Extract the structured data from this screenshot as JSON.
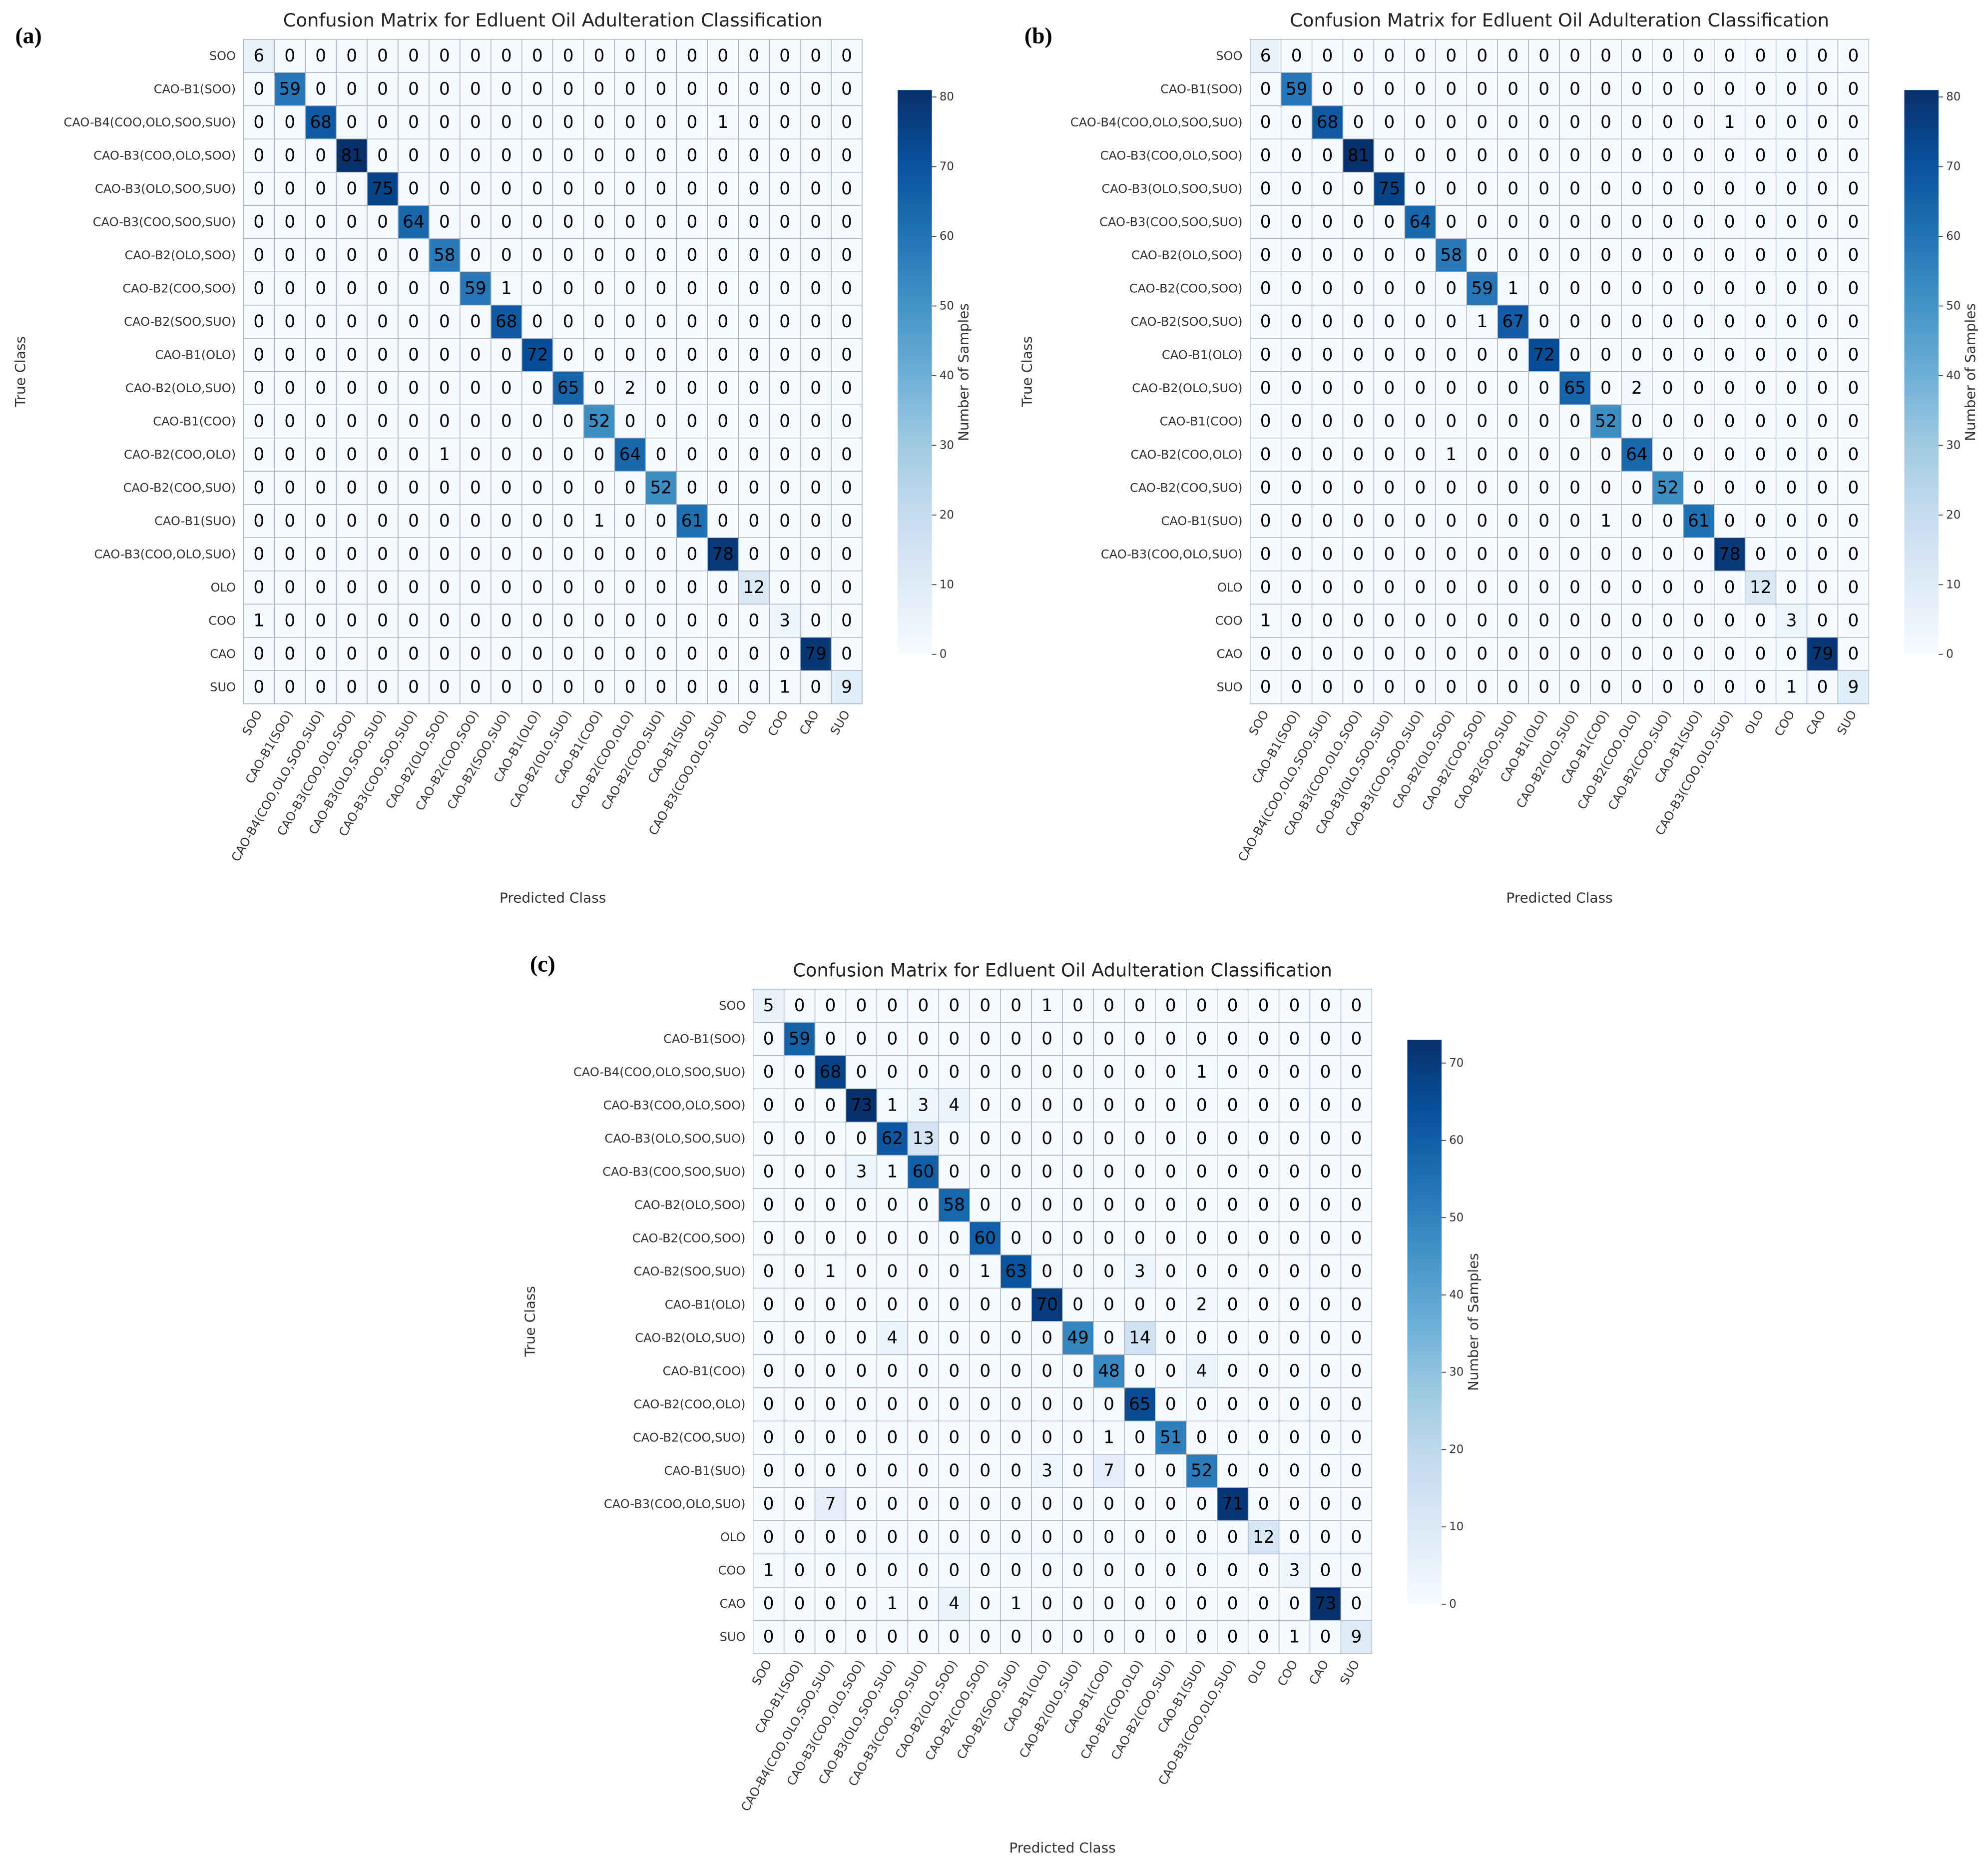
{
  "chart_data": [
    {
      "type": "heatmap",
      "panel_label": "(a)",
      "title": "Confusion Matrix for Edluent Oil Adulteration Classification",
      "x_label": "Predicted Class",
      "y_label": "True Class",
      "colorbar_label": "Number of Samples",
      "colormap": "Blues",
      "clim": [
        0,
        81
      ],
      "cticks": [
        0,
        10,
        20,
        30,
        40,
        50,
        60,
        70,
        80
      ],
      "categories": [
        "SOO",
        "CAO-B1(SOO)",
        "CAO-B4(COO,OLO,SOO,SUO)",
        "CAO-B3(COO,OLO,SOO)",
        "CAO-B3(OLO,SOO,SUO)",
        "CAO-B3(COO,SOO,SUO)",
        "CAO-B2(OLO,SOO)",
        "CAO-B2(COO,SOO)",
        "CAO-B2(SOO,SUO)",
        "CAO-B1(OLO)",
        "CAO-B2(OLO,SUO)",
        "CAO-B1(COO)",
        "CAO-B2(COO,OLO)",
        "CAO-B2(COO,SUO)",
        "CAO-B1(SUO)",
        "CAO-B3(COO,OLO,SUO)",
        "OLO",
        "COO",
        "CAO",
        "SUO"
      ],
      "values": [
        [
          6,
          0,
          0,
          0,
          0,
          0,
          0,
          0,
          0,
          0,
          0,
          0,
          0,
          0,
          0,
          0,
          0,
          0,
          0,
          0
        ],
        [
          0,
          59,
          0,
          0,
          0,
          0,
          0,
          0,
          0,
          0,
          0,
          0,
          0,
          0,
          0,
          0,
          0,
          0,
          0,
          0
        ],
        [
          0,
          0,
          68,
          0,
          0,
          0,
          0,
          0,
          0,
          0,
          0,
          0,
          0,
          0,
          0,
          1,
          0,
          0,
          0,
          0
        ],
        [
          0,
          0,
          0,
          81,
          0,
          0,
          0,
          0,
          0,
          0,
          0,
          0,
          0,
          0,
          0,
          0,
          0,
          0,
          0,
          0
        ],
        [
          0,
          0,
          0,
          0,
          75,
          0,
          0,
          0,
          0,
          0,
          0,
          0,
          0,
          0,
          0,
          0,
          0,
          0,
          0,
          0
        ],
        [
          0,
          0,
          0,
          0,
          0,
          64,
          0,
          0,
          0,
          0,
          0,
          0,
          0,
          0,
          0,
          0,
          0,
          0,
          0,
          0
        ],
        [
          0,
          0,
          0,
          0,
          0,
          0,
          58,
          0,
          0,
          0,
          0,
          0,
          0,
          0,
          0,
          0,
          0,
          0,
          0,
          0
        ],
        [
          0,
          0,
          0,
          0,
          0,
          0,
          0,
          59,
          1,
          0,
          0,
          0,
          0,
          0,
          0,
          0,
          0,
          0,
          0,
          0
        ],
        [
          0,
          0,
          0,
          0,
          0,
          0,
          0,
          0,
          68,
          0,
          0,
          0,
          0,
          0,
          0,
          0,
          0,
          0,
          0,
          0
        ],
        [
          0,
          0,
          0,
          0,
          0,
          0,
          0,
          0,
          0,
          72,
          0,
          0,
          0,
          0,
          0,
          0,
          0,
          0,
          0,
          0
        ],
        [
          0,
          0,
          0,
          0,
          0,
          0,
          0,
          0,
          0,
          0,
          65,
          0,
          2,
          0,
          0,
          0,
          0,
          0,
          0,
          0
        ],
        [
          0,
          0,
          0,
          0,
          0,
          0,
          0,
          0,
          0,
          0,
          0,
          52,
          0,
          0,
          0,
          0,
          0,
          0,
          0,
          0
        ],
        [
          0,
          0,
          0,
          0,
          0,
          0,
          1,
          0,
          0,
          0,
          0,
          0,
          64,
          0,
          0,
          0,
          0,
          0,
          0,
          0
        ],
        [
          0,
          0,
          0,
          0,
          0,
          0,
          0,
          0,
          0,
          0,
          0,
          0,
          0,
          52,
          0,
          0,
          0,
          0,
          0,
          0
        ],
        [
          0,
          0,
          0,
          0,
          0,
          0,
          0,
          0,
          0,
          0,
          0,
          1,
          0,
          0,
          61,
          0,
          0,
          0,
          0,
          0
        ],
        [
          0,
          0,
          0,
          0,
          0,
          0,
          0,
          0,
          0,
          0,
          0,
          0,
          0,
          0,
          0,
          78,
          0,
          0,
          0,
          0
        ],
        [
          0,
          0,
          0,
          0,
          0,
          0,
          0,
          0,
          0,
          0,
          0,
          0,
          0,
          0,
          0,
          0,
          12,
          0,
          0,
          0
        ],
        [
          1,
          0,
          0,
          0,
          0,
          0,
          0,
          0,
          0,
          0,
          0,
          0,
          0,
          0,
          0,
          0,
          0,
          3,
          0,
          0
        ],
        [
          0,
          0,
          0,
          0,
          0,
          0,
          0,
          0,
          0,
          0,
          0,
          0,
          0,
          0,
          0,
          0,
          0,
          0,
          79,
          0
        ],
        [
          0,
          0,
          0,
          0,
          0,
          0,
          0,
          0,
          0,
          0,
          0,
          0,
          0,
          0,
          0,
          0,
          0,
          1,
          0,
          9
        ]
      ]
    },
    {
      "type": "heatmap",
      "panel_label": "(b)",
      "title": "Confusion Matrix for Edluent Oil Adulteration Classification",
      "x_label": "Predicted Class",
      "y_label": "True Class",
      "colorbar_label": "Number of Samples",
      "colormap": "Blues",
      "clim": [
        0,
        81
      ],
      "cticks": [
        0,
        10,
        20,
        30,
        40,
        50,
        60,
        70,
        80
      ],
      "categories": [
        "SOO",
        "CAO-B1(SOO)",
        "CAO-B4(COO,OLO,SOO,SUO)",
        "CAO-B3(COO,OLO,SOO)",
        "CAO-B3(OLO,SOO,SUO)",
        "CAO-B3(COO,SOO,SUO)",
        "CAO-B2(OLO,SOO)",
        "CAO-B2(COO,SOO)",
        "CAO-B2(SOO,SUO)",
        "CAO-B1(OLO)",
        "CAO-B2(OLO,SUO)",
        "CAO-B1(COO)",
        "CAO-B2(COO,OLO)",
        "CAO-B2(COO,SUO)",
        "CAO-B1(SUO)",
        "CAO-B3(COO,OLO,SUO)",
        "OLO",
        "COO",
        "CAO",
        "SUO"
      ],
      "values": [
        [
          6,
          0,
          0,
          0,
          0,
          0,
          0,
          0,
          0,
          0,
          0,
          0,
          0,
          0,
          0,
          0,
          0,
          0,
          0,
          0
        ],
        [
          0,
          59,
          0,
          0,
          0,
          0,
          0,
          0,
          0,
          0,
          0,
          0,
          0,
          0,
          0,
          0,
          0,
          0,
          0,
          0
        ],
        [
          0,
          0,
          68,
          0,
          0,
          0,
          0,
          0,
          0,
          0,
          0,
          0,
          0,
          0,
          0,
          1,
          0,
          0,
          0,
          0
        ],
        [
          0,
          0,
          0,
          81,
          0,
          0,
          0,
          0,
          0,
          0,
          0,
          0,
          0,
          0,
          0,
          0,
          0,
          0,
          0,
          0
        ],
        [
          0,
          0,
          0,
          0,
          75,
          0,
          0,
          0,
          0,
          0,
          0,
          0,
          0,
          0,
          0,
          0,
          0,
          0,
          0,
          0
        ],
        [
          0,
          0,
          0,
          0,
          0,
          64,
          0,
          0,
          0,
          0,
          0,
          0,
          0,
          0,
          0,
          0,
          0,
          0,
          0,
          0
        ],
        [
          0,
          0,
          0,
          0,
          0,
          0,
          58,
          0,
          0,
          0,
          0,
          0,
          0,
          0,
          0,
          0,
          0,
          0,
          0,
          0
        ],
        [
          0,
          0,
          0,
          0,
          0,
          0,
          0,
          59,
          1,
          0,
          0,
          0,
          0,
          0,
          0,
          0,
          0,
          0,
          0,
          0
        ],
        [
          0,
          0,
          0,
          0,
          0,
          0,
          0,
          1,
          67,
          0,
          0,
          0,
          0,
          0,
          0,
          0,
          0,
          0,
          0,
          0
        ],
        [
          0,
          0,
          0,
          0,
          0,
          0,
          0,
          0,
          0,
          72,
          0,
          0,
          0,
          0,
          0,
          0,
          0,
          0,
          0,
          0
        ],
        [
          0,
          0,
          0,
          0,
          0,
          0,
          0,
          0,
          0,
          0,
          65,
          0,
          2,
          0,
          0,
          0,
          0,
          0,
          0,
          0
        ],
        [
          0,
          0,
          0,
          0,
          0,
          0,
          0,
          0,
          0,
          0,
          0,
          52,
          0,
          0,
          0,
          0,
          0,
          0,
          0,
          0
        ],
        [
          0,
          0,
          0,
          0,
          0,
          0,
          1,
          0,
          0,
          0,
          0,
          0,
          64,
          0,
          0,
          0,
          0,
          0,
          0,
          0
        ],
        [
          0,
          0,
          0,
          0,
          0,
          0,
          0,
          0,
          0,
          0,
          0,
          0,
          0,
          52,
          0,
          0,
          0,
          0,
          0,
          0
        ],
        [
          0,
          0,
          0,
          0,
          0,
          0,
          0,
          0,
          0,
          0,
          0,
          1,
          0,
          0,
          61,
          0,
          0,
          0,
          0,
          0
        ],
        [
          0,
          0,
          0,
          0,
          0,
          0,
          0,
          0,
          0,
          0,
          0,
          0,
          0,
          0,
          0,
          78,
          0,
          0,
          0,
          0
        ],
        [
          0,
          0,
          0,
          0,
          0,
          0,
          0,
          0,
          0,
          0,
          0,
          0,
          0,
          0,
          0,
          0,
          12,
          0,
          0,
          0
        ],
        [
          1,
          0,
          0,
          0,
          0,
          0,
          0,
          0,
          0,
          0,
          0,
          0,
          0,
          0,
          0,
          0,
          0,
          3,
          0,
          0
        ],
        [
          0,
          0,
          0,
          0,
          0,
          0,
          0,
          0,
          0,
          0,
          0,
          0,
          0,
          0,
          0,
          0,
          0,
          0,
          79,
          0
        ],
        [
          0,
          0,
          0,
          0,
          0,
          0,
          0,
          0,
          0,
          0,
          0,
          0,
          0,
          0,
          0,
          0,
          0,
          1,
          0,
          9
        ]
      ]
    },
    {
      "type": "heatmap",
      "panel_label": "(c)",
      "title": "Confusion Matrix for Edluent Oil Adulteration Classification",
      "x_label": "Predicted Class",
      "y_label": "True Class",
      "colorbar_label": "Number of Samples",
      "colormap": "Blues",
      "clim": [
        0,
        73
      ],
      "cticks": [
        0,
        10,
        20,
        30,
        40,
        50,
        60,
        70
      ],
      "categories": [
        "SOO",
        "CAO-B1(SOO)",
        "CAO-B4(COO,OLO,SOO,SUO)",
        "CAO-B3(COO,OLO,SOO)",
        "CAO-B3(OLO,SOO,SUO)",
        "CAO-B3(COO,SOO,SUO)",
        "CAO-B2(OLO,SOO)",
        "CAO-B2(COO,SOO)",
        "CAO-B2(SOO,SUO)",
        "CAO-B1(OLO)",
        "CAO-B2(OLO,SUO)",
        "CAO-B1(COO)",
        "CAO-B2(COO,OLO)",
        "CAO-B2(COO,SUO)",
        "CAO-B1(SUO)",
        "CAO-B3(COO,OLO,SUO)",
        "OLO",
        "COO",
        "CAO",
        "SUO"
      ],
      "values": [
        [
          5,
          0,
          0,
          0,
          0,
          0,
          0,
          0,
          0,
          1,
          0,
          0,
          0,
          0,
          0,
          0,
          0,
          0,
          0,
          0
        ],
        [
          0,
          59,
          0,
          0,
          0,
          0,
          0,
          0,
          0,
          0,
          0,
          0,
          0,
          0,
          0,
          0,
          0,
          0,
          0,
          0
        ],
        [
          0,
          0,
          68,
          0,
          0,
          0,
          0,
          0,
          0,
          0,
          0,
          0,
          0,
          0,
          1,
          0,
          0,
          0,
          0,
          0
        ],
        [
          0,
          0,
          0,
          73,
          1,
          3,
          4,
          0,
          0,
          0,
          0,
          0,
          0,
          0,
          0,
          0,
          0,
          0,
          0,
          0
        ],
        [
          0,
          0,
          0,
          0,
          62,
          13,
          0,
          0,
          0,
          0,
          0,
          0,
          0,
          0,
          0,
          0,
          0,
          0,
          0,
          0
        ],
        [
          0,
          0,
          0,
          3,
          1,
          60,
          0,
          0,
          0,
          0,
          0,
          0,
          0,
          0,
          0,
          0,
          0,
          0,
          0,
          0
        ],
        [
          0,
          0,
          0,
          0,
          0,
          0,
          58,
          0,
          0,
          0,
          0,
          0,
          0,
          0,
          0,
          0,
          0,
          0,
          0,
          0
        ],
        [
          0,
          0,
          0,
          0,
          0,
          0,
          0,
          60,
          0,
          0,
          0,
          0,
          0,
          0,
          0,
          0,
          0,
          0,
          0,
          0
        ],
        [
          0,
          0,
          1,
          0,
          0,
          0,
          0,
          1,
          63,
          0,
          0,
          0,
          3,
          0,
          0,
          0,
          0,
          0,
          0,
          0
        ],
        [
          0,
          0,
          0,
          0,
          0,
          0,
          0,
          0,
          0,
          70,
          0,
          0,
          0,
          0,
          2,
          0,
          0,
          0,
          0,
          0
        ],
        [
          0,
          0,
          0,
          0,
          4,
          0,
          0,
          0,
          0,
          0,
          49,
          0,
          14,
          0,
          0,
          0,
          0,
          0,
          0,
          0
        ],
        [
          0,
          0,
          0,
          0,
          0,
          0,
          0,
          0,
          0,
          0,
          0,
          48,
          0,
          0,
          4,
          0,
          0,
          0,
          0,
          0
        ],
        [
          0,
          0,
          0,
          0,
          0,
          0,
          0,
          0,
          0,
          0,
          0,
          0,
          65,
          0,
          0,
          0,
          0,
          0,
          0,
          0
        ],
        [
          0,
          0,
          0,
          0,
          0,
          0,
          0,
          0,
          0,
          0,
          0,
          1,
          0,
          51,
          0,
          0,
          0,
          0,
          0,
          0
        ],
        [
          0,
          0,
          0,
          0,
          0,
          0,
          0,
          0,
          0,
          3,
          0,
          7,
          0,
          0,
          52,
          0,
          0,
          0,
          0,
          0
        ],
        [
          0,
          0,
          7,
          0,
          0,
          0,
          0,
          0,
          0,
          0,
          0,
          0,
          0,
          0,
          0,
          71,
          0,
          0,
          0,
          0
        ],
        [
          0,
          0,
          0,
          0,
          0,
          0,
          0,
          0,
          0,
          0,
          0,
          0,
          0,
          0,
          0,
          0,
          12,
          0,
          0,
          0
        ],
        [
          1,
          0,
          0,
          0,
          0,
          0,
          0,
          0,
          0,
          0,
          0,
          0,
          0,
          0,
          0,
          0,
          0,
          3,
          0,
          0
        ],
        [
          0,
          0,
          0,
          0,
          1,
          0,
          4,
          0,
          1,
          0,
          0,
          0,
          0,
          0,
          0,
          0,
          0,
          0,
          73,
          0
        ],
        [
          0,
          0,
          0,
          0,
          0,
          0,
          0,
          0,
          0,
          0,
          0,
          0,
          0,
          0,
          0,
          0,
          0,
          1,
          0,
          9
        ]
      ]
    }
  ]
}
